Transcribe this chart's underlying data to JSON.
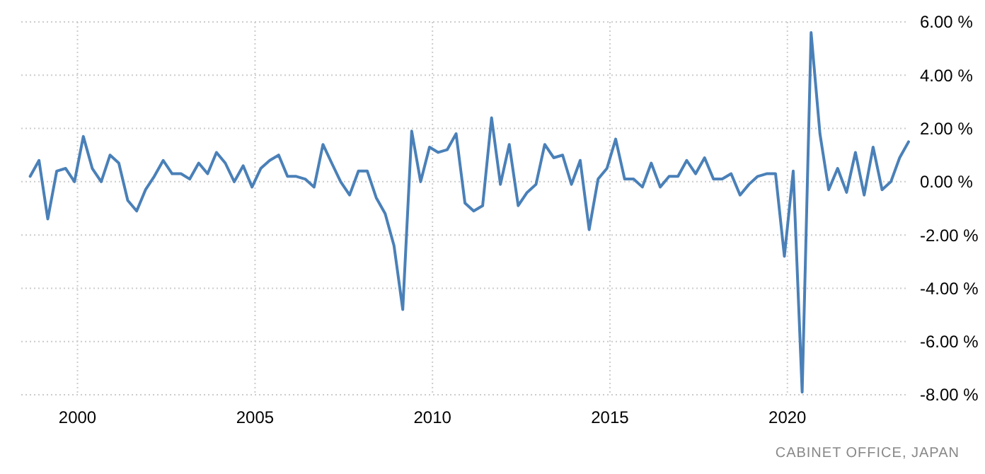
{
  "chart_data": {
    "type": "line",
    "x": [
      "1998-09",
      "1998-12",
      "1999-03",
      "1999-06",
      "1999-09",
      "1999-12",
      "2000-03",
      "2000-06",
      "2000-09",
      "2000-12",
      "2001-03",
      "2001-06",
      "2001-09",
      "2001-12",
      "2002-03",
      "2002-06",
      "2002-09",
      "2002-12",
      "2003-03",
      "2003-06",
      "2003-09",
      "2003-12",
      "2004-03",
      "2004-06",
      "2004-09",
      "2004-12",
      "2005-03",
      "2005-06",
      "2005-09",
      "2005-12",
      "2006-03",
      "2006-06",
      "2006-09",
      "2006-12",
      "2007-03",
      "2007-06",
      "2007-09",
      "2007-12",
      "2008-03",
      "2008-06",
      "2008-09",
      "2008-12",
      "2009-03",
      "2009-06",
      "2009-09",
      "2009-12",
      "2010-03",
      "2010-06",
      "2010-09",
      "2010-12",
      "2011-03",
      "2011-06",
      "2011-09",
      "2011-12",
      "2012-03",
      "2012-06",
      "2012-09",
      "2012-12",
      "2013-03",
      "2013-06",
      "2013-09",
      "2013-12",
      "2014-03",
      "2014-06",
      "2014-09",
      "2014-12",
      "2015-03",
      "2015-06",
      "2015-09",
      "2015-12",
      "2016-03",
      "2016-06",
      "2016-09",
      "2016-12",
      "2017-03",
      "2017-06",
      "2017-09",
      "2017-12",
      "2018-03",
      "2018-06",
      "2018-09",
      "2018-12",
      "2019-03",
      "2019-06",
      "2019-09",
      "2019-12",
      "2020-03",
      "2020-06",
      "2020-09",
      "2020-12",
      "2021-03",
      "2021-06",
      "2021-09",
      "2021-12",
      "2022-03",
      "2022-06",
      "2022-09",
      "2022-12",
      "2023-03",
      "2023-06"
    ],
    "series": [
      {
        "color": "#4a80b8",
        "values": [
          0.2,
          0.8,
          -1.4,
          0.4,
          0.5,
          0.0,
          1.7,
          0.5,
          0.0,
          1.0,
          0.7,
          -0.7,
          -1.1,
          -0.3,
          0.2,
          0.8,
          0.3,
          0.3,
          0.1,
          0.7,
          0.3,
          1.1,
          0.7,
          0.0,
          0.6,
          -0.2,
          0.5,
          0.8,
          1.0,
          0.2,
          0.2,
          0.1,
          -0.2,
          1.4,
          0.7,
          0.0,
          -0.5,
          0.4,
          0.4,
          -0.6,
          -1.2,
          -2.4,
          -4.8,
          1.9,
          0.0,
          1.3,
          1.1,
          1.2,
          1.8,
          -0.8,
          -1.1,
          -0.9,
          2.4,
          -0.1,
          1.4,
          -0.9,
          -0.4,
          -0.1,
          1.4,
          0.9,
          1.0,
          -0.1,
          0.8,
          -1.8,
          0.1,
          0.5,
          1.6,
          0.1,
          0.1,
          -0.2,
          0.7,
          -0.2,
          0.2,
          0.2,
          0.8,
          0.3,
          0.9,
          0.1,
          0.1,
          0.3,
          -0.5,
          -0.1,
          0.2,
          0.3,
          0.3,
          -2.8,
          0.4,
          -7.9,
          5.6,
          1.8,
          -0.3,
          0.5,
          -0.4,
          1.1,
          -0.5,
          1.3,
          -0.3,
          0.0,
          0.9,
          1.5
        ]
      }
    ],
    "xlim": [
      "1998-06",
      "2023-06"
    ],
    "xticks": [
      "2000",
      "2005",
      "2010",
      "2015",
      "2020"
    ],
    "ylim": [
      -8,
      6
    ],
    "yticks": [
      {
        "value": 6,
        "label": "6.00 %"
      },
      {
        "value": 4,
        "label": "4.00 %"
      },
      {
        "value": 2,
        "label": "2.00 %"
      },
      {
        "value": 0,
        "label": "0.00 %"
      },
      {
        "value": -2,
        "label": "-2.00 %"
      },
      {
        "value": -4,
        "label": "-4.00 %"
      },
      {
        "value": -6,
        "label": "-6.00 %"
      },
      {
        "value": -8,
        "label": "-8.00 %"
      }
    ],
    "grid": true,
    "marker": "none",
    "line_style": "solid",
    "annotations": [
      "CABINET OFFICE, JAPAN"
    ]
  }
}
